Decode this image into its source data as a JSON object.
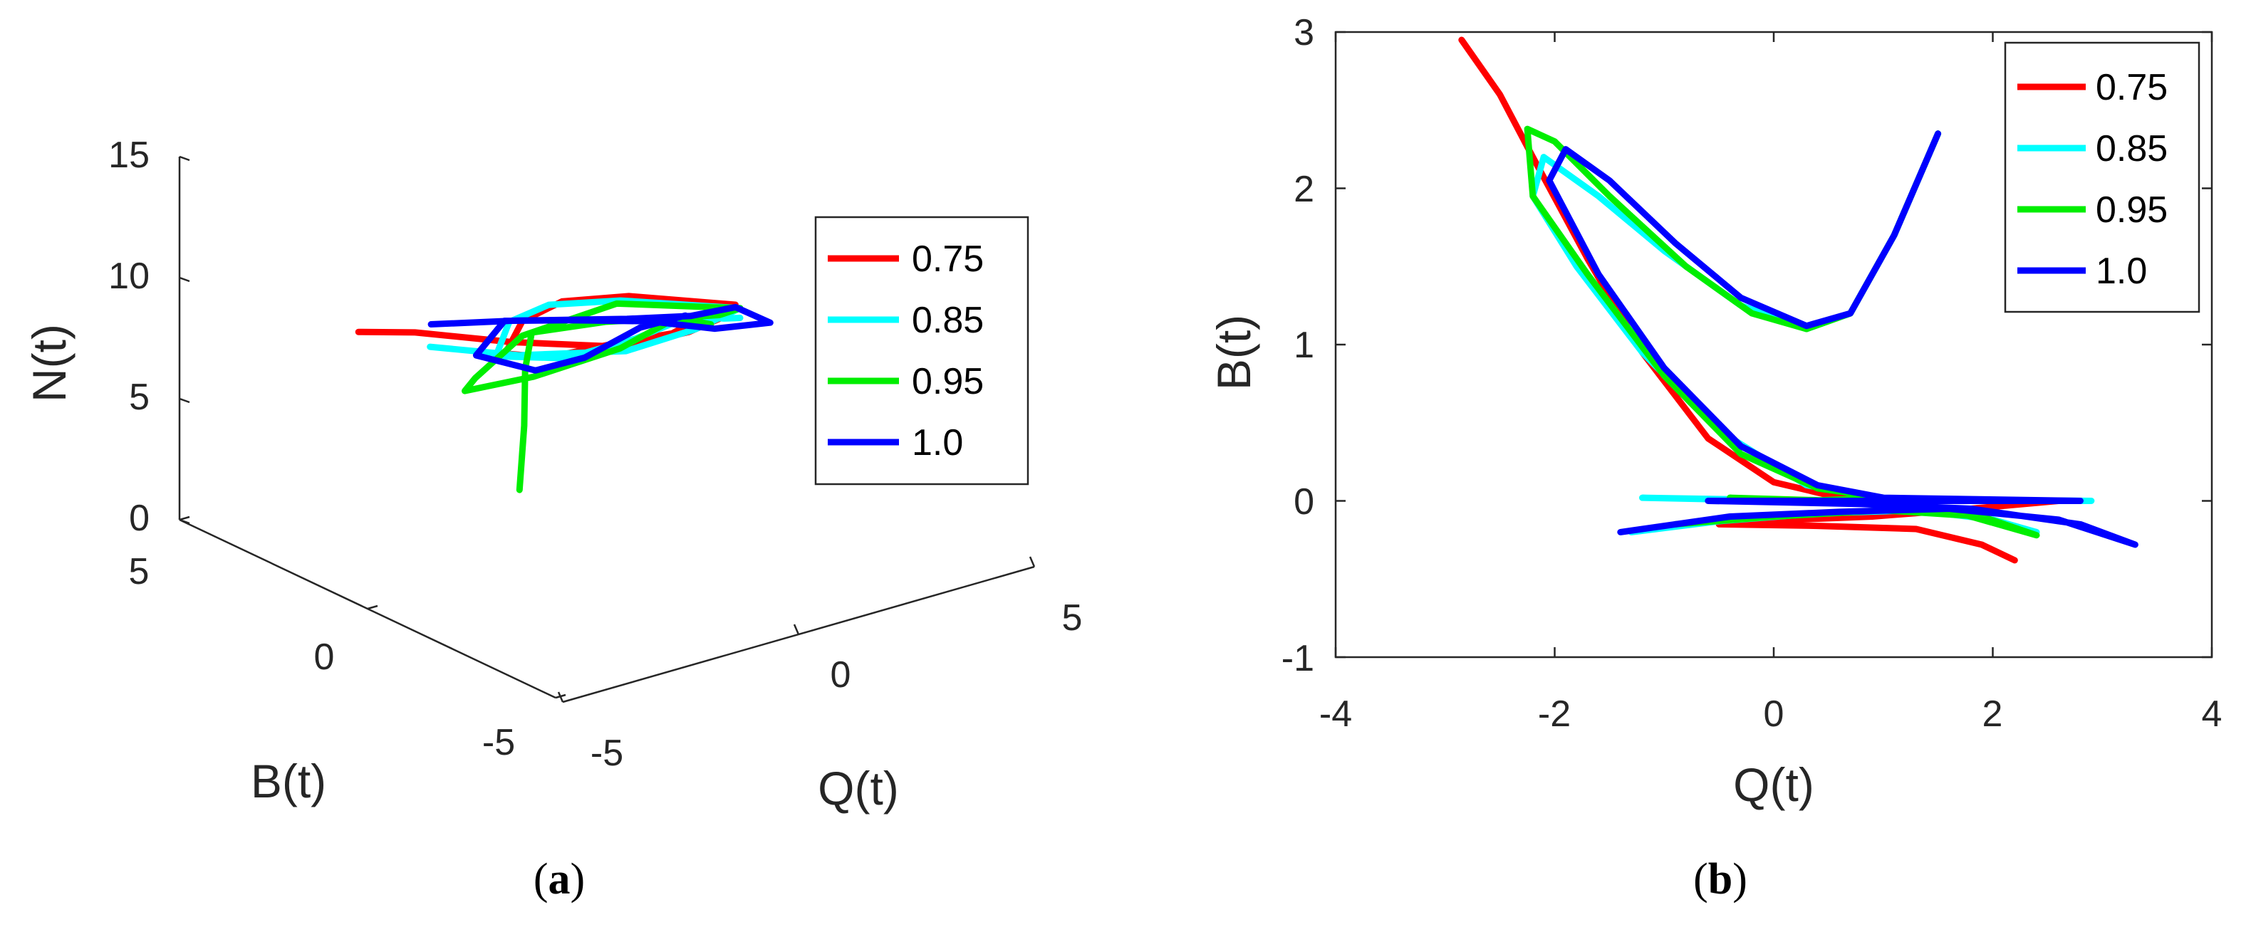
{
  "chart_data": [
    {
      "type": "line3d",
      "panel": "a",
      "caption_letter": "a",
      "xlabel": "Q(t)",
      "ylabel": "B(t)",
      "zlabel": "N(t)",
      "xlim": [
        -5,
        5
      ],
      "ylim": [
        -5,
        5
      ],
      "zlim": [
        0,
        15
      ],
      "xticks": [
        "-5",
        "0",
        "5"
      ],
      "yticks": [
        "-5",
        "0",
        "5"
      ],
      "zticks": [
        "0",
        "5",
        "10",
        "15"
      ],
      "legend_position": "right",
      "series": [
        {
          "name": "0.75",
          "color": "#ff0000",
          "points": [
            [
              -2.8,
              3.0,
              8
            ],
            [
              -2.0,
              2.5,
              7.9
            ],
            [
              -1.0,
              1.2,
              7.9
            ],
            [
              0.3,
              -0.2,
              8.0
            ],
            [
              1.5,
              -0.4,
              8.1
            ],
            [
              2.2,
              -0.4,
              8.3
            ],
            [
              2.8,
              0.0,
              8.2
            ],
            [
              1.5,
              1.2,
              8.4
            ],
            [
              0.4,
              1.6,
              8.5
            ],
            [
              -0.6,
              1.4,
              8.4
            ],
            [
              -1.6,
              0.6,
              8.2
            ],
            [
              -1.0,
              0.2,
              8.0
            ],
            [
              0.4,
              0.1,
              7.9
            ],
            [
              1.3,
              -0.2,
              8.0
            ],
            [
              1.8,
              -0.3,
              8.4
            ]
          ]
        },
        {
          "name": "0.85",
          "color": "#00ffff",
          "points": [
            [
              -2.0,
              2.1,
              7.6
            ],
            [
              -1.0,
              1.0,
              7.5
            ],
            [
              0.4,
              -0.1,
              7.7
            ],
            [
              1.8,
              -0.2,
              7.9
            ],
            [
              2.9,
              0.0,
              8.0
            ],
            [
              1.4,
              1.3,
              8.2
            ],
            [
              0.2,
              1.7,
              8.4
            ],
            [
              -0.8,
              1.5,
              8.4
            ],
            [
              -1.8,
              0.6,
              8.2
            ],
            [
              -0.8,
              0.0,
              8.0
            ],
            [
              0.6,
              -0.1,
              8.1
            ],
            [
              1.7,
              -0.2,
              8.5
            ],
            [
              2.4,
              -0.2,
              8.0
            ],
            [
              2.9,
              0.0,
              7.6
            ]
          ]
        },
        {
          "name": "0.95",
          "color": "#00ee00",
          "points": [
            [
              -1.3,
              0.6,
              2.4
            ],
            [
              -1.2,
              0.6,
              5.0
            ],
            [
              -1.1,
              0.7,
              7.2
            ],
            [
              -0.8,
              0.9,
              8.4
            ],
            [
              0.2,
              0.2,
              8.8
            ],
            [
              1.2,
              -0.1,
              8.6
            ],
            [
              2.3,
              -0.2,
              8.2
            ],
            [
              2.9,
              0.0,
              8.0
            ],
            [
              1.4,
              1.4,
              8.0
            ],
            [
              -0.2,
              1.9,
              7.2
            ],
            [
              -1.6,
              1.4,
              6.6
            ],
            [
              -2.3,
              0.8,
              6.9
            ],
            [
              -1.4,
              0.1,
              7.5
            ],
            [
              0.2,
              -0.2,
              8.0
            ],
            [
              1.4,
              -0.2,
              8.6
            ],
            [
              2.2,
              -0.1,
              7.8
            ]
          ]
        },
        {
          "name": "1.0",
          "color": "#0000ff",
          "points": [
            [
              -1.9,
              2.2,
              8.4
            ],
            [
              -0.8,
              1.3,
              8.6
            ],
            [
              0.5,
              0.0,
              8.9
            ],
            [
              1.7,
              -0.2,
              8.5
            ],
            [
              2.8,
              0.0,
              8.1
            ],
            [
              3.3,
              -0.3,
              7.4
            ],
            [
              2.6,
              0.3,
              7.1
            ],
            [
              1.6,
              0.8,
              7.6
            ],
            [
              0.3,
              1.3,
              8.0
            ],
            [
              -0.9,
              1.5,
              8.5
            ],
            [
              -1.9,
              1.0,
              8.0
            ],
            [
              -1.2,
              0.3,
              7.5
            ],
            [
              -0.4,
              0.0,
              7.8
            ],
            [
              0.7,
              -0.1,
              8.5
            ],
            [
              1.5,
              -0.3,
              8.7
            ]
          ]
        }
      ]
    },
    {
      "type": "line",
      "panel": "b",
      "caption_letter": "b",
      "xlabel": "Q(t)",
      "ylabel": "B(t)",
      "xlim": [
        -4,
        4
      ],
      "ylim": [
        -1,
        3
      ],
      "xticks": [
        "-4",
        "-2",
        "0",
        "2",
        "4"
      ],
      "yticks": [
        "-1",
        "0",
        "1",
        "2",
        "3"
      ],
      "legend_position": "top-right",
      "series": [
        {
          "name": "0.75",
          "color": "#ff0000",
          "points": [
            [
              -2.85,
              2.95
            ],
            [
              -2.5,
              2.6
            ],
            [
              -2.2,
              2.2
            ],
            [
              -1.7,
              1.55
            ],
            [
              -1.2,
              0.95
            ],
            [
              -0.6,
              0.4
            ],
            [
              0.0,
              0.12
            ],
            [
              0.6,
              0.02
            ],
            [
              1.2,
              0.0
            ],
            [
              2.0,
              0.0
            ],
            [
              2.6,
              0.0
            ],
            [
              1.8,
              -0.05
            ],
            [
              0.9,
              -0.1
            ],
            [
              0.2,
              -0.12
            ],
            [
              -0.5,
              -0.15
            ],
            [
              0.4,
              -0.16
            ],
            [
              1.3,
              -0.18
            ],
            [
              1.9,
              -0.28
            ],
            [
              2.2,
              -0.38
            ]
          ]
        },
        {
          "name": "0.85",
          "color": "#00ffff",
          "points": [
            [
              -1.3,
              -0.2
            ],
            [
              -0.5,
              -0.13
            ],
            [
              0.4,
              -0.08
            ],
            [
              1.3,
              -0.06
            ],
            [
              2.0,
              -0.12
            ],
            [
              2.4,
              -0.2
            ],
            [
              1.6,
              -0.06
            ],
            [
              0.6,
              0.0
            ],
            [
              -0.4,
              0.01
            ],
            [
              -1.2,
              0.02
            ],
            [
              0.2,
              0.0
            ],
            [
              1.4,
              0.0
            ],
            [
              2.9,
              0.0
            ],
            [
              1.0,
              0.01
            ],
            [
              0.3,
              0.1
            ],
            [
              -0.5,
              0.45
            ],
            [
              -1.2,
              0.95
            ],
            [
              -1.8,
              1.5
            ],
            [
              -2.2,
              1.95
            ],
            [
              -2.1,
              2.2
            ],
            [
              -1.6,
              1.95
            ],
            [
              -1.0,
              1.6
            ],
            [
              -0.3,
              1.25
            ],
            [
              0.3,
              1.1
            ],
            [
              0.7,
              1.2
            ],
            [
              1.1,
              1.7
            ],
            [
              1.5,
              2.35
            ]
          ]
        },
        {
          "name": "0.95",
          "color": "#00ee00",
          "points": [
            [
              -0.9,
              -0.15
            ],
            [
              0.0,
              -0.1
            ],
            [
              1.0,
              -0.06
            ],
            [
              1.9,
              -0.1
            ],
            [
              2.4,
              -0.22
            ],
            [
              1.6,
              -0.06
            ],
            [
              0.6,
              0.0
            ],
            [
              -0.4,
              0.02
            ],
            [
              0.3,
              0.0
            ],
            [
              1.0,
              0.02
            ],
            [
              0.4,
              0.08
            ],
            [
              -0.3,
              0.3
            ],
            [
              -1.0,
              0.8
            ],
            [
              -1.7,
              1.45
            ],
            [
              -2.2,
              1.95
            ],
            [
              -2.25,
              2.38
            ],
            [
              -2.0,
              2.3
            ],
            [
              -1.5,
              1.95
            ],
            [
              -0.8,
              1.5
            ],
            [
              -0.2,
              1.2
            ],
            [
              0.3,
              1.1
            ],
            [
              0.7,
              1.2
            ],
            [
              1.1,
              1.7
            ],
            [
              1.5,
              2.35
            ]
          ]
        },
        {
          "name": "1.0",
          "color": "#0000ff",
          "points": [
            [
              -1.4,
              -0.2
            ],
            [
              -0.4,
              -0.1
            ],
            [
              0.6,
              -0.07
            ],
            [
              1.6,
              -0.05
            ],
            [
              2.6,
              -0.12
            ],
            [
              3.3,
              -0.28
            ],
            [
              2.8,
              -0.15
            ],
            [
              1.8,
              -0.05
            ],
            [
              0.8,
              -0.02
            ],
            [
              -0.6,
              0.0
            ],
            [
              1.0,
              0.0
            ],
            [
              2.0,
              0.0
            ],
            [
              2.8,
              0.0
            ],
            [
              1.0,
              0.02
            ],
            [
              0.4,
              0.1
            ],
            [
              -0.3,
              0.35
            ],
            [
              -1.0,
              0.85
            ],
            [
              -1.6,
              1.45
            ],
            [
              -2.05,
              2.05
            ],
            [
              -1.9,
              2.25
            ],
            [
              -1.5,
              2.05
            ],
            [
              -0.9,
              1.65
            ],
            [
              -0.3,
              1.3
            ],
            [
              0.3,
              1.12
            ],
            [
              0.7,
              1.2
            ],
            [
              1.1,
              1.7
            ],
            [
              1.5,
              2.35
            ]
          ]
        }
      ]
    }
  ]
}
